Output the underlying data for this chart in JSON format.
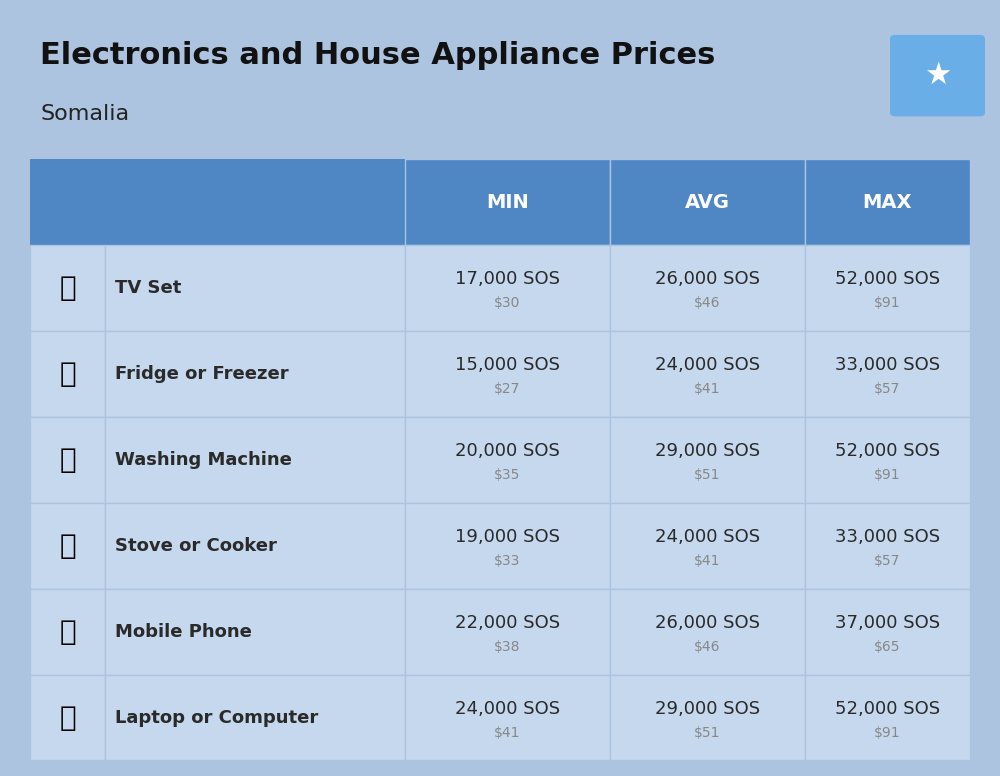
{
  "title": "Electronics and House Appliance Prices",
  "subtitle": "Somalia",
  "background_color": "#adc4e0",
  "header_color": "#4e87c4",
  "header_text_color": "#ffffff",
  "row_colors": [
    "#c5d8ee",
    "#b8cee6"
  ],
  "cell_text_color": "#2a2a2a",
  "usd_text_color": "#888888",
  "columns": [
    "MIN",
    "AVG",
    "MAX"
  ],
  "items": [
    {
      "name": "TV Set",
      "emoji": "📺",
      "min_sos": "17,000 SOS",
      "min_usd": "$30",
      "avg_sos": "26,000 SOS",
      "avg_usd": "$46",
      "max_sos": "52,000 SOS",
      "max_usd": "$91"
    },
    {
      "name": "Fridge or Freezer",
      "emoji": "🎞",
      "min_sos": "15,000 SOS",
      "min_usd": "$27",
      "avg_sos": "24,000 SOS",
      "avg_usd": "$41",
      "max_sos": "33,000 SOS",
      "max_usd": "$57"
    },
    {
      "name": "Washing Machine",
      "emoji": "📱",
      "min_sos": "20,000 SOS",
      "min_usd": "$35",
      "avg_sos": "29,000 SOS",
      "avg_usd": "$51",
      "max_sos": "52,000 SOS",
      "max_usd": "$91"
    },
    {
      "name": "Stove or Cooker",
      "emoji": "🔥",
      "min_sos": "19,000 SOS",
      "min_usd": "$33",
      "avg_sos": "24,000 SOS",
      "avg_usd": "$41",
      "max_sos": "33,000 SOS",
      "max_usd": "$57"
    },
    {
      "name": "Mobile Phone",
      "emoji": "📱",
      "min_sos": "22,000 SOS",
      "min_usd": "$38",
      "avg_sos": "26,000 SOS",
      "avg_usd": "$46",
      "max_sos": "37,000 SOS",
      "max_usd": "$65"
    },
    {
      "name": "Laptop or Computer",
      "emoji": "💻",
      "min_sos": "24,000 SOS",
      "min_usd": "$41",
      "avg_sos": "29,000 SOS",
      "avg_usd": "$51",
      "max_sos": "52,000 SOS",
      "max_usd": "$91"
    }
  ],
  "icon_images": [
    "tv",
    "fridge",
    "washing",
    "stove",
    "phone",
    "laptop"
  ],
  "flag_color_light": "#6aaee8",
  "flag_color_dark": "#3a7fd4",
  "flag_star_color": "#ffffff"
}
